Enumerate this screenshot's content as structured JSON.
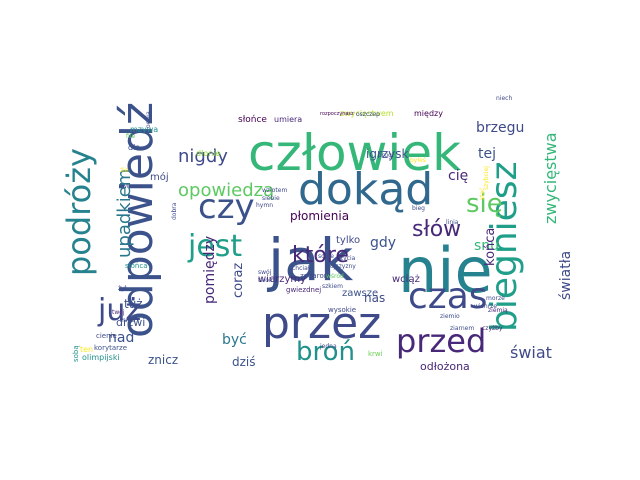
{
  "word_cloud": {
    "words": [
      {
        "text": "nie",
        "color": "#26828e"
      },
      {
        "text": "jak",
        "color": "#3b528b"
      },
      {
        "text": "człowiek",
        "color": "#35b779"
      },
      {
        "text": "dokąd",
        "color": "#31688e"
      },
      {
        "text": "przez",
        "color": "#3e4a89"
      },
      {
        "text": "odpowiedź",
        "color": "#3b528b"
      },
      {
        "text": "biegniesz",
        "color": "#1f9e89"
      },
      {
        "text": "czas",
        "color": "#3e4a89"
      },
      {
        "text": "przed",
        "color": "#482878"
      },
      {
        "text": "czy",
        "color": "#3b528b"
      },
      {
        "text": "jest",
        "color": "#1f9e89"
      },
      {
        "text": "podróży",
        "color": "#26828e"
      },
      {
        "text": "już",
        "color": "#3e4a89"
      },
      {
        "text": "broń",
        "color": "#21918c"
      },
      {
        "text": "się",
        "color": "#5ec962"
      },
      {
        "text": "które",
        "color": "#482878"
      },
      {
        "text": "słów",
        "color": "#482878"
      },
      {
        "text": "upadkiem",
        "color": "#2a788e"
      },
      {
        "text": "nigdy",
        "color": "#3e4a89"
      },
      {
        "text": "opowiedzą",
        "color": "#5ec962"
      },
      {
        "text": "brzegu",
        "color": "#3e4a89"
      },
      {
        "text": "tej",
        "color": "#3b528b"
      },
      {
        "text": "cię",
        "color": "#482878"
      },
      {
        "text": "zwycięstwa",
        "color": "#35b779"
      },
      {
        "text": "igrzysk",
        "color": "#3b528b"
      },
      {
        "text": "płomienia",
        "color": "#440154"
      },
      {
        "text": "gdy",
        "color": "#3b528b"
      },
      {
        "text": "snu",
        "color": "#35b779"
      },
      {
        "text": "końca",
        "color": "#482878"
      },
      {
        "text": "światła",
        "color": "#3e4a89"
      },
      {
        "text": "pomiędzy",
        "color": "#482878"
      },
      {
        "text": "coraz",
        "color": "#3e4a89"
      },
      {
        "text": "nad",
        "color": "#3b528b"
      },
      {
        "text": "być",
        "color": "#2a788e"
      },
      {
        "text": "świat",
        "color": "#3e4a89"
      },
      {
        "text": "znicz",
        "color": "#3b528b"
      },
      {
        "text": "dziś",
        "color": "#3b528b"
      },
      {
        "text": "odłożona",
        "color": "#482878"
      },
      {
        "text": "nas",
        "color": "#3e4a89"
      },
      {
        "text": "tuż",
        "color": "#3b528b"
      },
      {
        "text": "drzwi",
        "color": "#3b528b"
      },
      {
        "text": "wierzymy",
        "color": "#482878"
      },
      {
        "text": "zawsze",
        "color": "#3b528b"
      },
      {
        "text": "tylko",
        "color": "#3e4a89"
      },
      {
        "text": "wciąż",
        "color": "#482878"
      },
      {
        "text": "mój",
        "color": "#3e4a89"
      },
      {
        "text": "słońce",
        "color": "#440154"
      },
      {
        "text": "umiera",
        "color": "#482878"
      },
      {
        "text": "zwycięstwem",
        "color": "#b5de2b"
      },
      {
        "text": "między",
        "color": "#440154"
      },
      {
        "text": "dłonie",
        "color": "#90d743"
      },
      {
        "text": "mzywa",
        "color": "#21918c"
      },
      {
        "text": "dla",
        "color": "#3b528b"
      },
      {
        "text": "zegarom",
        "color": "#3e4a89"
      },
      {
        "text": "gwiezdnej",
        "color": "#482878"
      },
      {
        "text": "wysokie",
        "color": "#3e4a89"
      },
      {
        "text": "olimpijski",
        "color": "#21918c"
      },
      {
        "text": "korytarze",
        "color": "#3b528b"
      },
      {
        "text": "ten",
        "color": "#fde725"
      },
      {
        "text": "cienie",
        "color": "#3e4a89"
      },
      {
        "text": "słońca",
        "color": "#21918c"
      },
      {
        "text": "sobą",
        "color": "#21918c"
      },
      {
        "text": "twoim",
        "color": "#3e4a89"
      },
      {
        "text": "swój",
        "color": "#3e4a89"
      },
      {
        "text": "chciał",
        "color": "#3e4a89"
      },
      {
        "text": "szkiem",
        "color": "#3e4a89"
      },
      {
        "text": "ojczyzny",
        "color": "#3e4a89"
      },
      {
        "text": "wśród",
        "color": "#5ec962"
      },
      {
        "text": "jedną",
        "color": "#3e4a89"
      },
      {
        "text": "krwi",
        "color": "#6ece58"
      },
      {
        "text": "ziarnem",
        "color": "#3e4a89"
      },
      {
        "text": "ziemią",
        "color": "#482878"
      },
      {
        "text": "czyżby",
        "color": "#482878"
      },
      {
        "text": "drugi",
        "color": "#3e4a89"
      },
      {
        "text": "bieg",
        "color": "#3e4a89"
      },
      {
        "text": "linią",
        "color": "#3e4a89"
      },
      {
        "text": "oszczep",
        "color": "#3e4a89"
      },
      {
        "text": "rozpoczynasz",
        "color": "#440154"
      },
      {
        "text": "hymn",
        "color": "#3e4a89"
      },
      {
        "text": "wzlotem",
        "color": "#3e4a89"
      },
      {
        "text": "siebie",
        "color": "#3e4a89"
      },
      {
        "text": "sobie",
        "color": "#3e4a89"
      },
      {
        "text": "życia",
        "color": "#3e4a89"
      },
      {
        "text": "źle",
        "color": "#fde725"
      },
      {
        "text": "mnie",
        "color": "#3e4a89"
      },
      {
        "text": "żył",
        "color": "#3e4a89"
      },
      {
        "text": "twój",
        "color": "#482878"
      },
      {
        "text": "ognia",
        "color": "#3e4a89"
      },
      {
        "text": "file",
        "color": "#5ec962"
      },
      {
        "text": "wiosna",
        "color": "#3e4a89"
      },
      {
        "text": "niech",
        "color": "#3e4a89"
      },
      {
        "text": "morze",
        "color": "#3e4a89"
      },
      {
        "text": "wichrze",
        "color": "#3e4a89"
      },
      {
        "text": "ziemio",
        "color": "#3e4a89"
      },
      {
        "text": "dobra",
        "color": "#3e4a89"
      },
      {
        "text": "byłeś",
        "color": "#fde725"
      },
      {
        "text": "szybciej",
        "color": "#fde725"
      },
      {
        "text": "stać",
        "color": "#fde725"
      }
    ]
  }
}
